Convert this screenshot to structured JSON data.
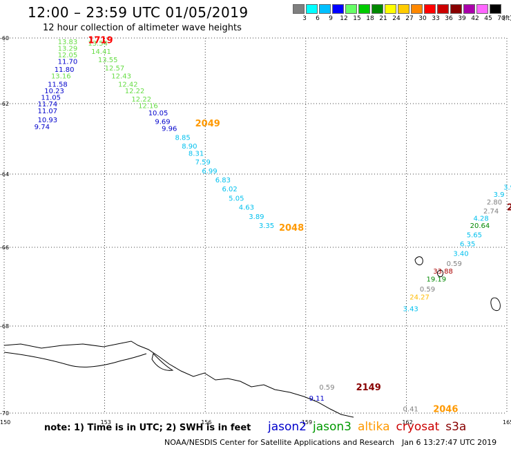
{
  "title": "12:00 – 23:59 UTC 01/05/2019",
  "subtitle": "12 hour collection of altimeter wave heights",
  "colorbar": {
    "unit": "(ft)",
    "colors": [
      "#7f7f7f",
      "#00ffff",
      "#00c0ff",
      "#0000ff",
      "#66ff66",
      "#00cc00",
      "#008800",
      "#ffff00",
      "#ffcc00",
      "#ff8800",
      "#ff0000",
      "#cc0000",
      "#880000",
      "#aa00aa",
      "#ff66ff",
      "#000000"
    ],
    "labels": [
      "3",
      "6",
      "9",
      "12",
      "15",
      "18",
      "21",
      "24",
      "27",
      "30",
      "33",
      "36",
      "39",
      "42",
      "45",
      "70"
    ]
  },
  "axes": {
    "lat_labels": [
      "-60",
      "-62",
      "-64",
      "-66",
      "-68",
      "-70"
    ],
    "lon_labels": [
      "150",
      "153",
      "156",
      "159",
      "162",
      "165"
    ]
  },
  "observations": [
    {
      "v": "13.83",
      "c": "#66dd44",
      "lon": 151.6,
      "lat": -60.1
    },
    {
      "v": "13.29",
      "c": "#66dd44",
      "lon": 151.6,
      "lat": -60.3
    },
    {
      "v": "12.05",
      "c": "#66dd44",
      "lon": 151.6,
      "lat": -60.5
    },
    {
      "v": "11.70",
      "c": "#0000cc",
      "lon": 151.6,
      "lat": -60.7
    },
    {
      "v": "11.80",
      "c": "#0000cc",
      "lon": 151.5,
      "lat": -60.95
    },
    {
      "v": "13.16",
      "c": "#66dd44",
      "lon": 151.4,
      "lat": -61.15
    },
    {
      "v": "11.58",
      "c": "#0000cc",
      "lon": 151.3,
      "lat": -61.4
    },
    {
      "v": "10.23",
      "c": "#0000cc",
      "lon": 151.2,
      "lat": -61.6
    },
    {
      "v": "11.05",
      "c": "#0000cc",
      "lon": 151.1,
      "lat": -61.8
    },
    {
      "v": "11.74",
      "c": "#0000cc",
      "lon": 151.0,
      "lat": -62.0
    },
    {
      "v": "11.07",
      "c": "#0000cc",
      "lon": 151.0,
      "lat": -62.2
    },
    {
      "v": "10.93",
      "c": "#0000cc",
      "lon": 151.0,
      "lat": -62.45
    },
    {
      "v": "9.74",
      "c": "#0000cc",
      "lon": 150.9,
      "lat": -62.65
    },
    {
      "v": "13.54",
      "c": "#66dd44",
      "lon": 152.5,
      "lat": -60.15
    },
    {
      "v": "14.41",
      "c": "#66dd44",
      "lon": 152.6,
      "lat": -60.4
    },
    {
      "v": "13.55",
      "c": "#66dd44",
      "lon": 152.8,
      "lat": -60.65
    },
    {
      "v": "12.57",
      "c": "#66dd44",
      "lon": 153.0,
      "lat": -60.9
    },
    {
      "v": "12.43",
      "c": "#66dd44",
      "lon": 153.2,
      "lat": -61.15
    },
    {
      "v": "12.42",
      "c": "#66dd44",
      "lon": 153.4,
      "lat": -61.4
    },
    {
      "v": "12.22",
      "c": "#66dd44",
      "lon": 153.6,
      "lat": -61.6
    },
    {
      "v": "12.22",
      "c": "#66dd44",
      "lon": 153.8,
      "lat": -61.85
    },
    {
      "v": "12.16",
      "c": "#66dd44",
      "lon": 154.0,
      "lat": -62.05
    },
    {
      "v": "10.05",
      "c": "#0000cc",
      "lon": 154.3,
      "lat": -62.25
    },
    {
      "v": "9.69",
      "c": "#0000cc",
      "lon": 154.5,
      "lat": -62.5
    },
    {
      "v": "9.96",
      "c": "#0000cc",
      "lon": 154.7,
      "lat": -62.7
    },
    {
      "v": "8.85",
      "c": "#00c0ee",
      "lon": 155.1,
      "lat": -62.95
    },
    {
      "v": "8.90",
      "c": "#00c0ee",
      "lon": 155.3,
      "lat": -63.2
    },
    {
      "v": "8.31",
      "c": "#00c0ee",
      "lon": 155.5,
      "lat": -63.4
    },
    {
      "v": "7.59",
      "c": "#00c0ee",
      "lon": 155.7,
      "lat": -63.65
    },
    {
      "v": "6.99",
      "c": "#00c0ee",
      "lon": 155.9,
      "lat": -63.9
    },
    {
      "v": "6.83",
      "c": "#00c0ee",
      "lon": 156.3,
      "lat": -64.15
    },
    {
      "v": "6.02",
      "c": "#00c0ee",
      "lon": 156.5,
      "lat": -64.4
    },
    {
      "v": "5.05",
      "c": "#00c0ee",
      "lon": 156.7,
      "lat": -64.65
    },
    {
      "v": "4.63",
      "c": "#00c0ee",
      "lon": 157.0,
      "lat": -64.9
    },
    {
      "v": "3.89",
      "c": "#00c0ee",
      "lon": 157.3,
      "lat": -65.15
    },
    {
      "v": "3.35",
      "c": "#00c0ee",
      "lon": 157.6,
      "lat": -65.4
    },
    {
      "v": "0.59",
      "c": "#7f7f7f",
      "lon": 159.4,
      "lat": -69.4
    },
    {
      "v": "9.11",
      "c": "#0000cc",
      "lon": 159.1,
      "lat": -69.65
    },
    {
      "v": "0.41",
      "c": "#7f7f7f",
      "lon": 161.9,
      "lat": -69.9
    },
    {
      "v": "3.9",
      "c": "#00c0ee",
      "lon": 164.9,
      "lat": -64.35
    },
    {
      "v": "3.9",
      "c": "#00c0ee",
      "lon": 164.6,
      "lat": -64.55
    },
    {
      "v": "2.80",
      "c": "#7f7f7f",
      "lon": 164.4,
      "lat": -64.75
    },
    {
      "v": "2.74",
      "c": "#7f7f7f",
      "lon": 164.3,
      "lat": -65.0
    },
    {
      "v": "4.28",
      "c": "#00c0ee",
      "lon": 164.0,
      "lat": -65.2
    },
    {
      "v": "20.64",
      "c": "#008800",
      "lon": 163.9,
      "lat": -65.4
    },
    {
      "v": "5.65",
      "c": "#00c0ee",
      "lon": 163.8,
      "lat": -65.65
    },
    {
      "v": "6.35",
      "c": "#00c0ee",
      "lon": 163.6,
      "lat": -65.9
    },
    {
      "v": "3.40",
      "c": "#00c0ee",
      "lon": 163.4,
      "lat": -66.15
    },
    {
      "v": "0.59",
      "c": "#7f7f7f",
      "lon": 163.2,
      "lat": -66.4
    },
    {
      "v": "33.88",
      "c": "#aa0000",
      "lon": 162.8,
      "lat": -66.6
    },
    {
      "v": "19.19",
      "c": "#008800",
      "lon": 162.6,
      "lat": -66.8
    },
    {
      "v": "0.59",
      "c": "#7f7f7f",
      "lon": 162.4,
      "lat": -67.05
    },
    {
      "v": "24.27",
      "c": "#ffbb00",
      "lon": 162.1,
      "lat": -67.25
    },
    {
      "v": "3.43",
      "c": "#00c0ee",
      "lon": 161.9,
      "lat": -67.55
    }
  ],
  "cycles": [
    {
      "v": "1719",
      "c": "#ff0000",
      "lon": 152.5,
      "lat": -60.05
    },
    {
      "v": "2049",
      "c": "#ff9900",
      "lon": 155.7,
      "lat": -62.55
    },
    {
      "v": "2048",
      "c": "#ff9900",
      "lon": 158.2,
      "lat": -65.45
    },
    {
      "v": "2149",
      "c": "#880000",
      "lon": 160.5,
      "lat": -69.4
    },
    {
      "v": "2046",
      "c": "#ff9900",
      "lon": 162.8,
      "lat": -69.9
    },
    {
      "v": "2",
      "c": "#880000",
      "lon": 165.0,
      "lat": -64.9
    }
  ],
  "note": "note:  1) Time is in UTC;  2) SWH is in feet",
  "legend": [
    {
      "name": "jason2",
      "color": "#0000cc"
    },
    {
      "name": "jason3",
      "color": "#009900"
    },
    {
      "name": "altika",
      "color": "#ff9900"
    },
    {
      "name": "cryosat",
      "color": "#cc0000"
    },
    {
      "name": "s3a",
      "color": "#880000"
    }
  ],
  "credit": "NOAA/NESDIS Center for Satellite Applications and Research",
  "timestamp": "Jan  6 13:27:47 UTC 2019"
}
